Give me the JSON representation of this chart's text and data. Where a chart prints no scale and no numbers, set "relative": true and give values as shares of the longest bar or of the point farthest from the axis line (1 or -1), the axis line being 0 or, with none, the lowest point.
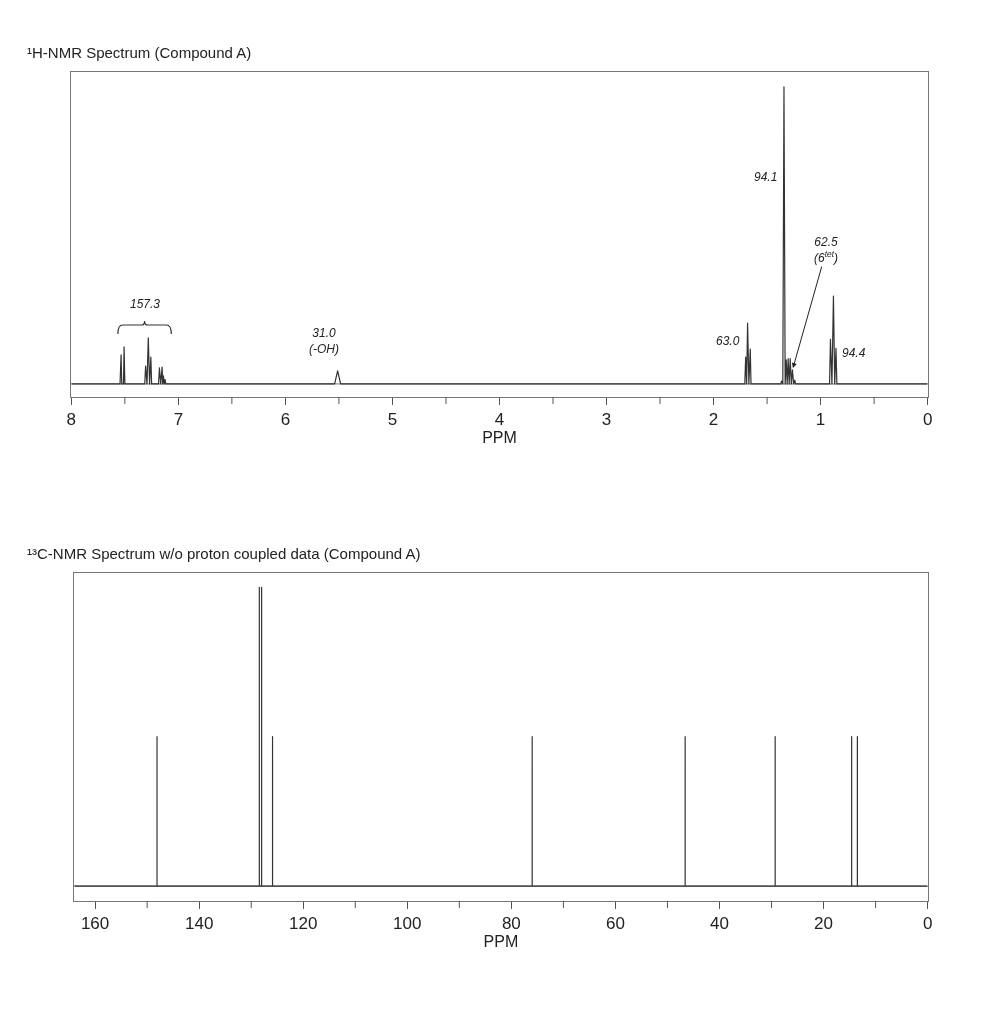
{
  "chart_data": [
    {
      "type": "line",
      "title": "¹H-NMR Spectrum (Compound A)",
      "xlabel": "PPM",
      "relative": true,
      "grid": false,
      "marker": "none",
      "line_style": "solid",
      "xlim": [
        8,
        0
      ],
      "xticks": [
        8,
        7,
        6,
        5,
        4,
        3,
        2,
        1,
        0
      ],
      "series": [
        {
          "color": "#333333",
          "x": [
            8,
            7.545,
            7.535,
            7.529,
            7.513,
            7.507,
            7.5,
            7.314,
            7.306,
            7.293,
            7.281,
            7.269,
            7.257,
            7.25,
            7.185,
            7.177,
            7.165,
            7.152,
            7.146,
            7.14,
            7.132,
            7.124,
            7.118,
            5.54,
            5.512,
            5.484,
            1.708,
            1.7,
            1.691,
            1.682,
            1.67,
            1.657,
            1.65,
            1.372,
            1.364,
            1.353,
            1.342,
            1.331,
            1.321,
            1.312,
            1.303,
            1.293,
            1.284,
            1.273,
            1.263,
            1.252,
            1.241,
            1.234,
            0.916,
            0.908,
            0.894,
            0.88,
            0.868,
            0.856,
            0.848,
            0
          ],
          "values": [
            0,
            0,
            0.098,
            0,
            0,
            0.125,
            0,
            0,
            0.06,
            0,
            0.155,
            0,
            0.09,
            0,
            0,
            0.054,
            0,
            0.057,
            0,
            0.027,
            0,
            0.015,
            0,
            0,
            0.044,
            0,
            0,
            0.09,
            0,
            0.205,
            0,
            0.117,
            0,
            0,
            0.01,
            0,
            1.0,
            0,
            0.081,
            0,
            0.085,
            0,
            0.085,
            0,
            0.047,
            0,
            0.013,
            0,
            0,
            0.15,
            0,
            0.296,
            0,
            0.12,
            0,
            0
          ]
        }
      ],
      "annotations": [
        "157.3",
        {
          "text": "31.0\n(-OH)",
          "x": 5.512,
          "y": 0.044
        },
        {
          "text": "63.0",
          "x": 1.682,
          "y": 0.205
        },
        "94.1",
        {
          "text": "62.5\n(6$^{tet}$)",
          "x": 1.263,
          "y": 0.047
        },
        "94.4"
      ]
    },
    {
      "type": "line",
      "title": "¹³C-NMR Spectrum w/o proton coupled data (Compound A)",
      "xlabel": "PPM",
      "relative": true,
      "grid": false,
      "marker": "none",
      "line_style": "solid",
      "xlim": [
        164,
        0
      ],
      "xticks": [
        160,
        140,
        120,
        100,
        80,
        60,
        40,
        20,
        0
      ],
      "series": [
        {
          "color": "#333333",
          "x": [
            164,
            148.1,
            148.1,
            148.1,
            128.44,
            128.44,
            128.44,
            128.0,
            128.0,
            128.0,
            125.9,
            125.9,
            125.9,
            76.0,
            76.0,
            76.0,
            46.6,
            46.6,
            46.6,
            29.3,
            29.3,
            29.3,
            14.6,
            14.6,
            14.6,
            13.5,
            13.5,
            13.5,
            0
          ],
          "values": [
            0,
            0,
            0.5,
            0,
            0,
            1.0,
            0,
            0,
            1.0,
            0,
            0,
            0.5,
            0,
            0,
            0.5,
            0,
            0,
            0.5,
            0,
            0,
            0.5,
            0,
            0,
            0.5,
            0,
            0,
            0.5,
            0,
            0
          ]
        }
      ]
    }
  ]
}
